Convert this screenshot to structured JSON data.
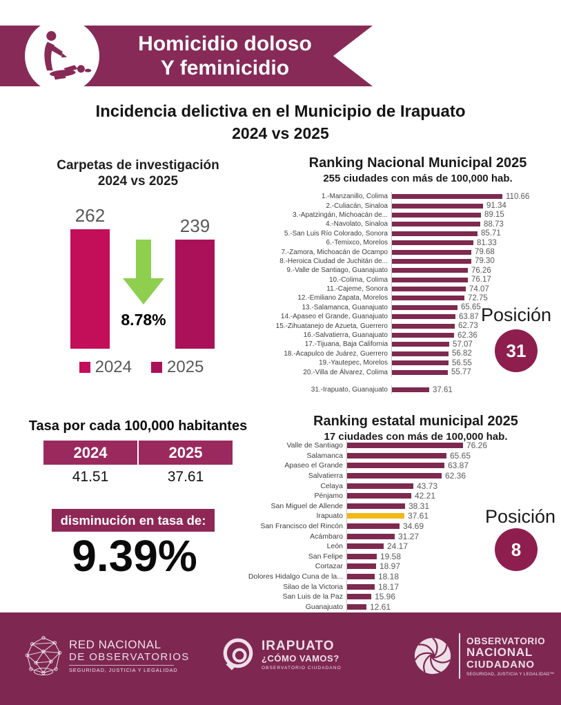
{
  "colors": {
    "banner_maroon": "#872a57",
    "bar_2024": "#c30e59",
    "bar_2025": "#aa1158",
    "ranking_bar": "#7e2a50",
    "highlight": "#f2b818",
    "badge": "#8e1e4e",
    "footer_bg": "#7e2751",
    "arrow_green": "#8fcf50",
    "table_header": "#9a2a5e"
  },
  "banner": {
    "line1": "Homicidio doloso",
    "line2": "Y feminicidio",
    "icon": "homicide-icon"
  },
  "title": {
    "line1": "Incidencia delictiva en el Municipio de Irapuato",
    "line2": "2024 vs 2025"
  },
  "chart_data": [
    {
      "type": "bar",
      "title": "Carpetas de investigación",
      "subtitle": "2024 vs 2025",
      "categories": [
        "2024",
        "2025"
      ],
      "values": [
        262,
        239
      ],
      "colors": [
        "#c30e59",
        "#aa1158"
      ],
      "annotation": "8.78%",
      "annotation_meaning": "decrease-arrow",
      "legend": [
        "2024",
        "2025"
      ],
      "ylim": [
        0,
        280
      ]
    },
    {
      "type": "bar",
      "orientation": "horizontal",
      "title": "Ranking Nacional Municipal 2025",
      "subtitle": "255 ciudades con más de 100,000 hab.",
      "position_label": "Posición",
      "position_value": "31",
      "xlim": [
        0,
        115
      ],
      "entries": [
        {
          "label": "1.-Manzanillo, Colima",
          "value": 110.66
        },
        {
          "label": "2.-Culiacán, Sinaloa",
          "value": 91.34
        },
        {
          "label": "3.-Apatzingán, Michoacán de...",
          "value": 89.15
        },
        {
          "label": "4.-Navolato, Sinaloa",
          "value": 88.73
        },
        {
          "label": "5.-San Luis Río Colorado, Sonora",
          "value": 85.71
        },
        {
          "label": "6.-Temixco, Morelos",
          "value": 81.33
        },
        {
          "label": "7.-Zamora, Michoacán de Ocampo",
          "value": 79.68
        },
        {
          "label": "8.-Heroica Ciudad de Juchitán de...",
          "value": 79.3
        },
        {
          "label": "9.-Valle de Santiago, Guanajuato",
          "value": 76.26
        },
        {
          "label": "10.-Colima, Colima",
          "value": 76.17
        },
        {
          "label": "11.-Cajeme, Sonora",
          "value": 74.07
        },
        {
          "label": "12.-Emiliano Zapata, Morelos",
          "value": 72.75
        },
        {
          "label": "13.-Salamanca, Guanajuato",
          "value": 65.65
        },
        {
          "label": "14.-Apaseo el Grande, Guanajuato",
          "value": 63.87
        },
        {
          "label": "15.-Zihuatanejo de Azueta, Guerrero",
          "value": 62.73
        },
        {
          "label": "16.-Salvatierra, Guanajuato",
          "value": 62.36
        },
        {
          "label": "17.-Tijuana, Baja California",
          "value": 57.07
        },
        {
          "label": "18.-Acapulco de Juárez, Guerrero",
          "value": 56.82
        },
        {
          "label": "19.-Yautepec, Morelos",
          "value": 56.55
        },
        {
          "label": "20.-Villa de Álvarez, Colima",
          "value": 55.77
        },
        {
          "label": "31.-Irapuato, Guanajuato",
          "value": 37.61,
          "gap_before": true
        }
      ]
    },
    {
      "type": "bar",
      "orientation": "horizontal",
      "title": "Ranking estatal municipal 2025",
      "subtitle": "17 ciudades con más de 100,000 hab.",
      "position_label": "Posición",
      "position_value": "8",
      "xlim": [
        0,
        80
      ],
      "highlight_category": "Irapuato",
      "entries": [
        {
          "label": "Valle de Santiago",
          "value": 76.26
        },
        {
          "label": "Salamanca",
          "value": 65.65
        },
        {
          "label": "Apaseo el Grande",
          "value": 63.87
        },
        {
          "label": "Salvatierra",
          "value": 62.36
        },
        {
          "label": "Celaya",
          "value": 43.73
        },
        {
          "label": "Pénjamo",
          "value": 42.21
        },
        {
          "label": "San Miguel de Allende",
          "value": 38.31
        },
        {
          "label": "Irapuato",
          "value": 37.61,
          "highlight": true
        },
        {
          "label": "San Francisco del Rincón",
          "value": 34.69
        },
        {
          "label": "Acámbaro",
          "value": 31.27
        },
        {
          "label": "León",
          "value": 24.17
        },
        {
          "label": "San Felipe",
          "value": 19.58
        },
        {
          "label": "Cortazar",
          "value": 18.97
        },
        {
          "label": "Dolores Hidalgo Cuna de la...",
          "value": 18.18
        },
        {
          "label": "Silao de la Victoria",
          "value": 18.17
        },
        {
          "label": "San Luis de la Paz",
          "value": 15.96
        },
        {
          "label": "Guanajuato",
          "value": 12.61
        }
      ]
    }
  ],
  "tasa": {
    "title": "Tasa por cada 100,000 habitantes",
    "headers": [
      "2024",
      "2025"
    ],
    "values": [
      "41.51",
      "37.61"
    ],
    "decrease_label": "disminución en tasa de:",
    "decrease_value": "9.39%"
  },
  "footer": {
    "rno": {
      "icon": "network-icon",
      "line1": "RED NACIONAL",
      "line2": "DE OBSERVATORIOS",
      "line3": "SEGURIDAD, JUSTICIA Y LEGALIDAD"
    },
    "icv": {
      "icon": "irapuato-como-vamos-icon",
      "line1": "IRAPUATO",
      "line2": "¿CÓMO VAMOS?",
      "line3": "OBSERVATORIO CIUDADANO"
    },
    "onc": {
      "icon": "shutter-icon",
      "line1": "OBSERVATORIO",
      "line2": "NACIONAL",
      "line3": "CIUDADANO",
      "line4": "SEGURIDAD, JUSTICIA Y LEGALIDAD™"
    }
  }
}
